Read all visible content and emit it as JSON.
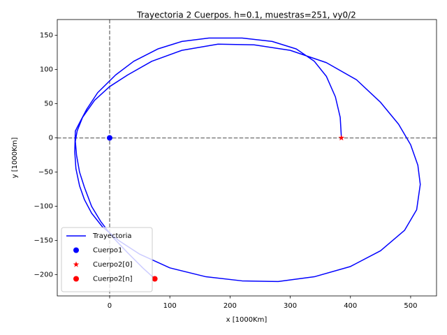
{
  "chart_data": {
    "type": "line",
    "title": "Trayectoria 2 Cuerpos. h=0.1, muestras=251, vy0/2",
    "xlabel": "x [1000Km]",
    "ylabel": "y [1000Km]",
    "xlim": [
      -87,
      543
    ],
    "ylim": [
      -231,
      173
    ],
    "xticks": [
      0,
      100,
      200,
      300,
      400,
      500
    ],
    "yticks": [
      {
        "value": -200,
        "label": "−200"
      },
      {
        "value": -150,
        "label": "−150"
      },
      {
        "value": -100,
        "label": "−100"
      },
      {
        "value": -50,
        "label": "−50"
      },
      0,
      50,
      100,
      150
    ],
    "hlines": [
      0
    ],
    "vlines": [
      0
    ],
    "ref_color": "#808080",
    "legend": "lower left",
    "series": [
      {
        "name": "Trayectoria",
        "color": "#0000ff",
        "marker": "none",
        "x": [
          385,
          383,
          375,
          360,
          340,
          310,
          270,
          220,
          165,
          120,
          80,
          40,
          10,
          -20,
          -38,
          -50,
          -57,
          -58,
          -56,
          -50,
          -42,
          -30,
          -12,
          15,
          50,
          100,
          160,
          220,
          280,
          340,
          400,
          450,
          490,
          510,
          516,
          512,
          500,
          480,
          450,
          410,
          360,
          300,
          240,
          180,
          120,
          70,
          30,
          0,
          -25,
          -45,
          -54,
          -57,
          -55,
          -50,
          -42,
          -30,
          -15,
          5,
          30,
          55,
          75
        ],
        "y": [
          0,
          30,
          60,
          90,
          112,
          130,
          141,
          146,
          146,
          141,
          130,
          112,
          92,
          66,
          42,
          22,
          10,
          -20,
          -45,
          -70,
          -90,
          -110,
          -130,
          -150,
          -170,
          -190,
          -203,
          -209,
          -210,
          -203,
          -188,
          -165,
          -135,
          -105,
          -68,
          -40,
          -10,
          20,
          52,
          85,
          110,
          128,
          136,
          137,
          128,
          112,
          92,
          75,
          55,
          30,
          10,
          -5,
          -25,
          -50,
          -72,
          -100,
          -122,
          -145,
          -168,
          -190,
          -206
        ]
      },
      {
        "name": "Cuerpo1",
        "color": "#0000ff",
        "marker": "o",
        "x": [
          0
        ],
        "y": [
          0
        ]
      },
      {
        "name": "Cuerpo2[0]",
        "color": "#ff0000",
        "marker": "*",
        "x": [
          385
        ],
        "y": [
          0
        ]
      },
      {
        "name": "Cuerpo2[n]",
        "color": "#ff0000",
        "marker": "o",
        "x": [
          75
        ],
        "y": [
          -206
        ]
      }
    ]
  }
}
